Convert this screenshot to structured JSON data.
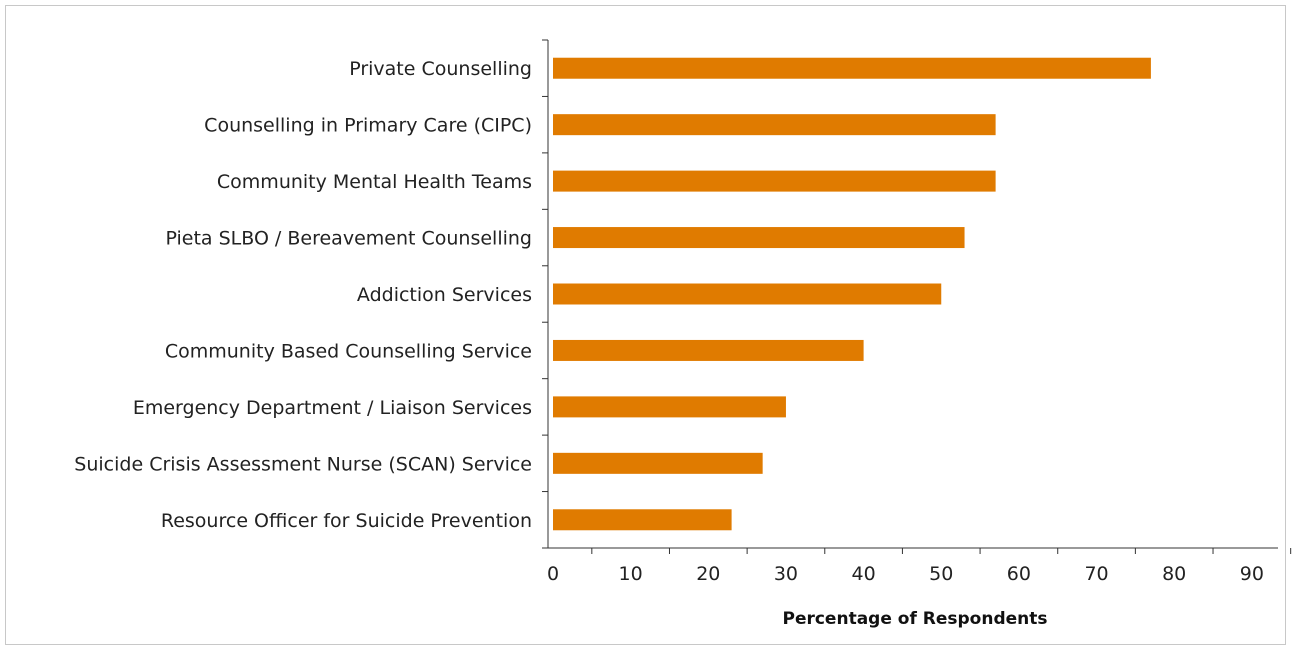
{
  "chart_data": {
    "type": "bar",
    "orientation": "horizontal",
    "categories": [
      "Private Counselling",
      "Counselling in Primary Care (CIPC)",
      "Community Mental Health Teams",
      "Pieta SLBO / Bereavement Counselling",
      "Addiction Services",
      "Community Based Counselling Service",
      "Emergency Department / Liaison Services",
      "Suicide Crisis Assessment Nurse (SCAN) Service",
      "Resource Officer for Suicide Prevention"
    ],
    "values": [
      77,
      57,
      57,
      53,
      50,
      40,
      30,
      27,
      23
    ],
    "title": "",
    "xlabel": "Percentage of Respondents",
    "ylabel": "",
    "xlim": [
      0,
      93
    ],
    "xticks": [
      "0",
      "10",
      "20",
      "30",
      "40",
      "50",
      "60",
      "70",
      "80",
      "90"
    ],
    "bar_color": "#E07B00",
    "grid": false,
    "legend": "none"
  }
}
